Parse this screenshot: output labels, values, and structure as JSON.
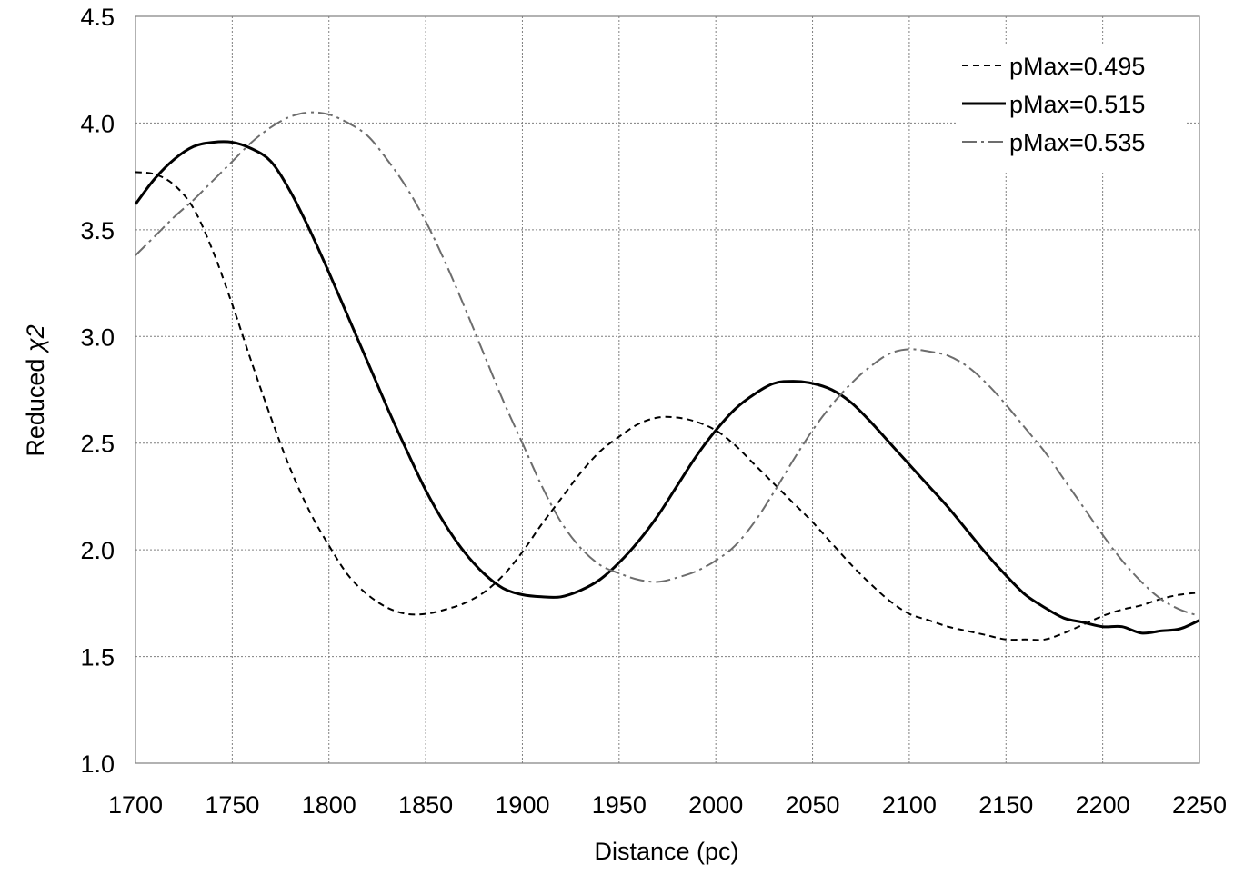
{
  "chart_data": {
    "type": "line",
    "title": "",
    "xlabel": "Distance (pc)",
    "ylabel_text": "Reduced ",
    "ylabel_symbol": "χ2",
    "xlim": [
      1700,
      2250
    ],
    "ylim": [
      1.0,
      4.5
    ],
    "x_ticks": [
      1700,
      1750,
      1800,
      1850,
      1900,
      1950,
      2000,
      2050,
      2100,
      2150,
      2200,
      2250
    ],
    "y_ticks": [
      1.0,
      1.5,
      2.0,
      2.5,
      3.0,
      3.5,
      4.0,
      4.5
    ],
    "x_tick_labels": [
      "1700",
      "1750",
      "1800",
      "1850",
      "1900",
      "1950",
      "2000",
      "2050",
      "2100",
      "2150",
      "2200",
      "2250"
    ],
    "y_tick_labels": [
      "1.0",
      "1.5",
      "2.0",
      "2.5",
      "3.0",
      "3.5",
      "4.0",
      "4.5"
    ],
    "grid": true,
    "legend_position": "top-right",
    "series": [
      {
        "name": "pMax=0.495",
        "style": "dashed",
        "color": "#000000",
        "x": [
          1700,
          1710,
          1720,
          1730,
          1740,
          1750,
          1760,
          1770,
          1780,
          1790,
          1800,
          1810,
          1820,
          1830,
          1840,
          1850,
          1860,
          1870,
          1880,
          1890,
          1900,
          1910,
          1920,
          1930,
          1940,
          1950,
          1960,
          1970,
          1980,
          1990,
          2000,
          2010,
          2020,
          2030,
          2040,
          2050,
          2060,
          2070,
          2080,
          2090,
          2100,
          2110,
          2120,
          2130,
          2140,
          2150,
          2160,
          2170,
          2180,
          2190,
          2200,
          2210,
          2220,
          2230,
          2240,
          2250
        ],
        "values": [
          3.77,
          3.76,
          3.71,
          3.6,
          3.4,
          3.15,
          2.88,
          2.62,
          2.38,
          2.18,
          2.02,
          1.88,
          1.79,
          1.73,
          1.7,
          1.7,
          1.72,
          1.75,
          1.8,
          1.88,
          1.99,
          2.12,
          2.24,
          2.36,
          2.46,
          2.53,
          2.59,
          2.62,
          2.62,
          2.6,
          2.56,
          2.49,
          2.4,
          2.31,
          2.22,
          2.13,
          2.03,
          1.93,
          1.84,
          1.76,
          1.7,
          1.67,
          1.64,
          1.62,
          1.6,
          1.58,
          1.58,
          1.58,
          1.61,
          1.65,
          1.69,
          1.72,
          1.74,
          1.77,
          1.79,
          1.8
        ]
      },
      {
        "name": "pMax=0.515",
        "style": "solid",
        "color": "#000000",
        "x": [
          1700,
          1710,
          1720,
          1730,
          1740,
          1750,
          1760,
          1770,
          1780,
          1790,
          1800,
          1810,
          1820,
          1830,
          1840,
          1850,
          1860,
          1870,
          1880,
          1890,
          1900,
          1910,
          1920,
          1930,
          1940,
          1950,
          1960,
          1970,
          1980,
          1990,
          2000,
          2010,
          2020,
          2030,
          2040,
          2050,
          2060,
          2070,
          2080,
          2090,
          2100,
          2110,
          2120,
          2130,
          2140,
          2150,
          2160,
          2170,
          2180,
          2190,
          2200,
          2210,
          2220,
          2230,
          2240,
          2250
        ],
        "values": [
          3.62,
          3.74,
          3.83,
          3.89,
          3.91,
          3.91,
          3.88,
          3.82,
          3.68,
          3.5,
          3.3,
          3.09,
          2.88,
          2.67,
          2.47,
          2.28,
          2.12,
          1.99,
          1.89,
          1.82,
          1.79,
          1.78,
          1.78,
          1.81,
          1.86,
          1.94,
          2.04,
          2.16,
          2.3,
          2.44,
          2.56,
          2.66,
          2.73,
          2.78,
          2.79,
          2.78,
          2.75,
          2.69,
          2.6,
          2.5,
          2.4,
          2.3,
          2.2,
          2.09,
          1.98,
          1.88,
          1.79,
          1.73,
          1.68,
          1.66,
          1.64,
          1.64,
          1.61,
          1.62,
          1.63,
          1.67
        ]
      },
      {
        "name": "pMax=0.535",
        "style": "dashdot",
        "color": "#6d6d6d",
        "x": [
          1700,
          1710,
          1720,
          1730,
          1740,
          1750,
          1760,
          1770,
          1780,
          1790,
          1800,
          1810,
          1820,
          1830,
          1840,
          1850,
          1860,
          1870,
          1880,
          1890,
          1900,
          1910,
          1920,
          1930,
          1940,
          1950,
          1960,
          1970,
          1980,
          1990,
          2000,
          2010,
          2020,
          2030,
          2040,
          2050,
          2060,
          2070,
          2080,
          2090,
          2100,
          2110,
          2120,
          2130,
          2140,
          2150,
          2160,
          2170,
          2180,
          2190,
          2200,
          2210,
          2220,
          2230,
          2240,
          2250
        ],
        "values": [
          3.38,
          3.47,
          3.56,
          3.64,
          3.73,
          3.82,
          3.91,
          3.98,
          4.03,
          4.05,
          4.04,
          4.0,
          3.94,
          3.83,
          3.7,
          3.54,
          3.35,
          3.14,
          2.92,
          2.7,
          2.5,
          2.3,
          2.13,
          2.01,
          1.93,
          1.89,
          1.86,
          1.85,
          1.87,
          1.9,
          1.95,
          2.02,
          2.13,
          2.27,
          2.42,
          2.56,
          2.68,
          2.78,
          2.86,
          2.92,
          2.94,
          2.93,
          2.91,
          2.86,
          2.78,
          2.68,
          2.57,
          2.46,
          2.33,
          2.2,
          2.07,
          1.95,
          1.85,
          1.77,
          1.72,
          1.69
        ]
      }
    ]
  }
}
